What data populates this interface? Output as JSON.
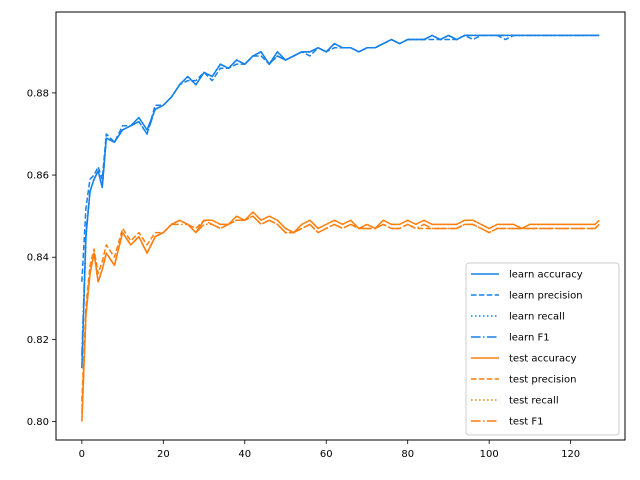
{
  "chart_data": {
    "type": "line",
    "title": "",
    "xlabel": "",
    "ylabel": "",
    "xlim": [
      -6.35,
      133.35
    ],
    "ylim": [
      0.7955,
      0.8997
    ],
    "x_ticks": [
      0,
      20,
      40,
      60,
      80,
      100,
      120
    ],
    "x_tick_labels": [
      "0",
      "20",
      "40",
      "60",
      "80",
      "100",
      "120"
    ],
    "y_ticks": [
      0.8,
      0.82,
      0.84,
      0.86,
      0.88
    ],
    "y_tick_labels": [
      "0.80",
      "0.82",
      "0.84",
      "0.86",
      "0.88"
    ],
    "grid": false,
    "legend_position": "lower-right",
    "colors": {
      "learn": "#1f77b4",
      "learn_shown": "#1681e8",
      "test": "#ff7f0e"
    },
    "x": [
      0,
      1,
      2,
      3,
      4,
      5,
      6,
      8,
      10,
      12,
      14,
      16,
      18,
      20,
      22,
      24,
      26,
      28,
      30,
      32,
      34,
      36,
      38,
      40,
      42,
      44,
      46,
      48,
      50,
      52,
      54,
      56,
      58,
      60,
      62,
      64,
      66,
      68,
      70,
      72,
      74,
      76,
      78,
      80,
      82,
      84,
      86,
      88,
      90,
      92,
      94,
      96,
      98,
      100,
      102,
      104,
      106,
      108,
      110,
      112,
      114,
      116,
      118,
      120,
      122,
      124,
      126,
      127
    ],
    "series": [
      {
        "name": "learn accuracy",
        "style": "solid",
        "group": "learn",
        "values": [
          0.813,
          0.845,
          0.856,
          0.859,
          0.861,
          0.857,
          0.869,
          0.868,
          0.871,
          0.872,
          0.874,
          0.871,
          0.876,
          0.877,
          0.879,
          0.882,
          0.884,
          0.882,
          0.885,
          0.884,
          0.887,
          0.886,
          0.888,
          0.887,
          0.889,
          0.89,
          0.887,
          0.89,
          0.888,
          0.889,
          0.89,
          0.89,
          0.891,
          0.89,
          0.892,
          0.891,
          0.891,
          0.89,
          0.891,
          0.891,
          0.892,
          0.893,
          0.892,
          0.893,
          0.893,
          0.893,
          0.894,
          0.893,
          0.894,
          0.893,
          0.894,
          0.894,
          0.894,
          0.894,
          0.894,
          0.894,
          0.894,
          0.894,
          0.894,
          0.894,
          0.894,
          0.894,
          0.894,
          0.894,
          0.894,
          0.894,
          0.894,
          0.894
        ]
      },
      {
        "name": "learn precision",
        "style": "dashed",
        "group": "learn",
        "values": [
          0.834,
          0.852,
          0.859,
          0.86,
          0.862,
          0.859,
          0.87,
          0.868,
          0.872,
          0.872,
          0.873,
          0.87,
          0.877,
          0.877,
          0.879,
          0.882,
          0.883,
          0.883,
          0.885,
          0.883,
          0.886,
          0.886,
          0.887,
          0.887,
          0.889,
          0.889,
          0.887,
          0.889,
          0.888,
          0.889,
          0.89,
          0.889,
          0.891,
          0.89,
          0.891,
          0.891,
          0.891,
          0.89,
          0.891,
          0.891,
          0.892,
          0.893,
          0.892,
          0.893,
          0.893,
          0.893,
          0.893,
          0.893,
          0.893,
          0.893,
          0.894,
          0.893,
          0.894,
          0.894,
          0.894,
          0.893,
          0.894,
          0.894,
          0.894,
          0.894,
          0.894,
          0.894,
          0.894,
          0.894,
          0.894,
          0.894,
          0.894,
          0.894
        ]
      },
      {
        "name": "learn recall",
        "style": "dotted",
        "group": "learn",
        "values": [
          0.813,
          0.845,
          0.856,
          0.859,
          0.861,
          0.857,
          0.869,
          0.868,
          0.871,
          0.872,
          0.874,
          0.871,
          0.876,
          0.877,
          0.879,
          0.882,
          0.884,
          0.882,
          0.885,
          0.884,
          0.887,
          0.886,
          0.888,
          0.887,
          0.889,
          0.89,
          0.887,
          0.89,
          0.888,
          0.889,
          0.89,
          0.89,
          0.891,
          0.89,
          0.892,
          0.891,
          0.891,
          0.89,
          0.891,
          0.891,
          0.892,
          0.893,
          0.892,
          0.893,
          0.893,
          0.893,
          0.894,
          0.893,
          0.894,
          0.893,
          0.894,
          0.894,
          0.894,
          0.894,
          0.894,
          0.894,
          0.894,
          0.894,
          0.894,
          0.894,
          0.894,
          0.894,
          0.894,
          0.894,
          0.894,
          0.894,
          0.894,
          0.894
        ]
      },
      {
        "name": "learn F1",
        "style": "dashdot",
        "group": "learn",
        "values": [
          0.816,
          0.846,
          0.856,
          0.859,
          0.861,
          0.857,
          0.869,
          0.868,
          0.871,
          0.872,
          0.873,
          0.87,
          0.876,
          0.877,
          0.879,
          0.882,
          0.884,
          0.882,
          0.885,
          0.884,
          0.887,
          0.886,
          0.888,
          0.887,
          0.889,
          0.89,
          0.887,
          0.889,
          0.888,
          0.889,
          0.89,
          0.89,
          0.891,
          0.89,
          0.892,
          0.891,
          0.891,
          0.89,
          0.891,
          0.891,
          0.892,
          0.893,
          0.892,
          0.893,
          0.893,
          0.893,
          0.894,
          0.893,
          0.894,
          0.893,
          0.894,
          0.894,
          0.894,
          0.894,
          0.894,
          0.894,
          0.894,
          0.894,
          0.894,
          0.894,
          0.894,
          0.894,
          0.894,
          0.894,
          0.894,
          0.894,
          0.894,
          0.894
        ]
      },
      {
        "name": "test accuracy",
        "style": "solid",
        "group": "test",
        "values": [
          0.8,
          0.826,
          0.836,
          0.841,
          0.834,
          0.837,
          0.841,
          0.838,
          0.846,
          0.843,
          0.845,
          0.841,
          0.845,
          0.846,
          0.848,
          0.849,
          0.848,
          0.846,
          0.849,
          0.849,
          0.848,
          0.848,
          0.85,
          0.849,
          0.851,
          0.849,
          0.85,
          0.849,
          0.847,
          0.846,
          0.848,
          0.849,
          0.847,
          0.848,
          0.849,
          0.848,
          0.849,
          0.847,
          0.848,
          0.847,
          0.849,
          0.848,
          0.848,
          0.849,
          0.848,
          0.849,
          0.848,
          0.848,
          0.848,
          0.848,
          0.849,
          0.849,
          0.848,
          0.847,
          0.848,
          0.848,
          0.848,
          0.847,
          0.848,
          0.848,
          0.848,
          0.848,
          0.848,
          0.848,
          0.848,
          0.848,
          0.848,
          0.849
        ]
      },
      {
        "name": "test precision",
        "style": "dashed",
        "group": "test",
        "values": [
          0.805,
          0.828,
          0.838,
          0.842,
          0.836,
          0.839,
          0.843,
          0.84,
          0.847,
          0.844,
          0.846,
          0.843,
          0.846,
          0.846,
          0.848,
          0.849,
          0.848,
          0.847,
          0.849,
          0.848,
          0.847,
          0.848,
          0.849,
          0.849,
          0.85,
          0.848,
          0.849,
          0.848,
          0.846,
          0.846,
          0.847,
          0.848,
          0.846,
          0.847,
          0.848,
          0.847,
          0.848,
          0.847,
          0.847,
          0.847,
          0.848,
          0.847,
          0.847,
          0.848,
          0.847,
          0.847,
          0.847,
          0.847,
          0.847,
          0.847,
          0.848,
          0.848,
          0.847,
          0.846,
          0.847,
          0.847,
          0.847,
          0.847,
          0.847,
          0.847,
          0.847,
          0.847,
          0.847,
          0.847,
          0.847,
          0.847,
          0.847,
          0.848
        ]
      },
      {
        "name": "test recall",
        "style": "dotted",
        "group": "test",
        "values": [
          0.8,
          0.826,
          0.836,
          0.841,
          0.834,
          0.837,
          0.841,
          0.838,
          0.846,
          0.843,
          0.845,
          0.841,
          0.845,
          0.846,
          0.848,
          0.849,
          0.848,
          0.846,
          0.849,
          0.849,
          0.848,
          0.848,
          0.85,
          0.849,
          0.851,
          0.849,
          0.85,
          0.849,
          0.847,
          0.846,
          0.848,
          0.849,
          0.847,
          0.848,
          0.849,
          0.848,
          0.849,
          0.847,
          0.848,
          0.847,
          0.849,
          0.848,
          0.848,
          0.849,
          0.848,
          0.849,
          0.848,
          0.848,
          0.848,
          0.848,
          0.849,
          0.849,
          0.848,
          0.847,
          0.848,
          0.848,
          0.848,
          0.847,
          0.848,
          0.848,
          0.848,
          0.848,
          0.848,
          0.848,
          0.848,
          0.848,
          0.848,
          0.849
        ]
      },
      {
        "name": "test F1",
        "style": "dashdot",
        "group": "test",
        "values": [
          0.802,
          0.826,
          0.836,
          0.841,
          0.834,
          0.837,
          0.841,
          0.838,
          0.846,
          0.843,
          0.845,
          0.841,
          0.845,
          0.846,
          0.848,
          0.848,
          0.848,
          0.846,
          0.848,
          0.848,
          0.847,
          0.848,
          0.849,
          0.849,
          0.85,
          0.848,
          0.849,
          0.848,
          0.846,
          0.846,
          0.847,
          0.848,
          0.846,
          0.847,
          0.848,
          0.847,
          0.848,
          0.847,
          0.847,
          0.847,
          0.848,
          0.847,
          0.847,
          0.848,
          0.847,
          0.848,
          0.847,
          0.847,
          0.847,
          0.847,
          0.848,
          0.848,
          0.847,
          0.846,
          0.847,
          0.847,
          0.847,
          0.847,
          0.847,
          0.847,
          0.847,
          0.847,
          0.847,
          0.847,
          0.847,
          0.847,
          0.847,
          0.848
        ]
      }
    ]
  }
}
